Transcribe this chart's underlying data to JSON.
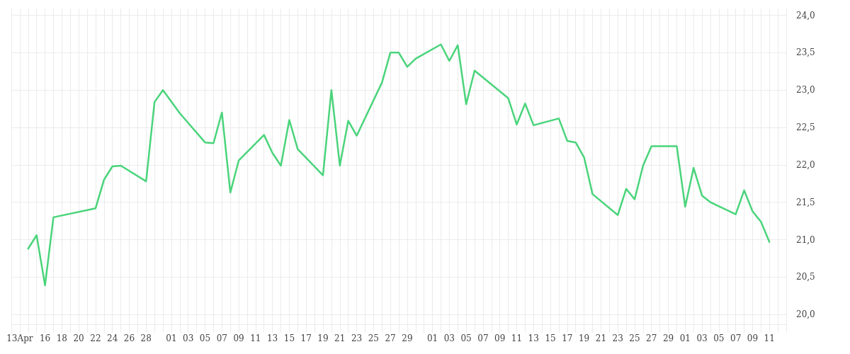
{
  "chart_data": {
    "type": "line",
    "x": [
      "--04-14",
      "--04-15",
      "--04-16",
      "--04-17",
      "--04-22",
      "--04-23",
      "--04-24",
      "--04-25",
      "--04-28",
      "--04-29",
      "--04-30",
      "--05-02",
      "--05-05",
      "--05-06",
      "--05-07",
      "--05-08",
      "--05-09",
      "--05-12",
      "--05-13",
      "--05-14",
      "--05-15",
      "--05-16",
      "--05-19",
      "--05-20",
      "--05-21",
      "--05-22",
      "--05-23",
      "--05-26",
      "--05-27",
      "--05-28",
      "--05-29",
      "--05-30",
      "--06-02",
      "--06-03",
      "--06-04",
      "--06-05",
      "--06-06",
      "--06-10",
      "--06-11",
      "--06-12",
      "--06-13",
      "--06-16",
      "--06-17",
      "--06-18",
      "--06-19",
      "--06-20",
      "--06-23",
      "--06-24",
      "--06-25",
      "--06-26",
      "--06-27",
      "--06-30",
      "--07-01",
      "--07-02",
      "--07-03",
      "--07-04",
      "--07-07",
      "--07-08",
      "--07-09",
      "--07-10",
      "--07-11"
    ],
    "series": [
      {
        "color": "#4ad47b",
        "values": [
          20.88,
          21.06,
          20.39,
          21.3,
          21.42,
          21.8,
          21.98,
          21.99,
          21.78,
          22.84,
          23.0,
          22.69,
          22.3,
          22.29,
          22.7,
          21.63,
          22.06,
          22.4,
          22.16,
          21.99,
          22.6,
          22.21,
          21.86,
          23.0,
          21.99,
          22.59,
          22.39,
          23.1,
          23.5,
          23.5,
          23.31,
          23.42,
          23.61,
          23.39,
          23.6,
          22.81,
          23.26,
          22.89,
          22.54,
          22.82,
          22.53,
          22.62,
          22.32,
          22.3,
          22.1,
          21.61,
          21.33,
          21.68,
          21.54,
          21.99,
          22.25,
          22.25,
          21.44,
          21.96,
          21.59,
          21.5,
          21.34,
          21.66,
          21.38,
          21.24,
          20.97
        ]
      }
    ],
    "xlim": [
      "--04-12",
      "--07-13"
    ],
    "xticks": [
      {
        "value": "--04-12",
        "label": null
      },
      {
        "value": "--04-13",
        "label": "13Apr"
      },
      {
        "value": "--04-14",
        "label": null
      },
      {
        "value": "--04-15",
        "label": null
      },
      {
        "value": "--04-16",
        "label": "16"
      },
      {
        "value": "--04-17",
        "label": null
      },
      {
        "value": "--04-18",
        "label": "18"
      },
      {
        "value": "--04-19",
        "label": null
      },
      {
        "value": "--04-20",
        "label": "20"
      },
      {
        "value": "--04-21",
        "label": null
      },
      {
        "value": "--04-22",
        "label": "22"
      },
      {
        "value": "--04-23",
        "label": null
      },
      {
        "value": "--04-24",
        "label": "24"
      },
      {
        "value": "--04-25",
        "label": null
      },
      {
        "value": "--04-26",
        "label": "26"
      },
      {
        "value": "--04-27",
        "label": null
      },
      {
        "value": "--04-28",
        "label": "28"
      },
      {
        "value": "--04-29",
        "label": null
      },
      {
        "value": "--04-30",
        "label": null
      },
      {
        "value": "--05-01",
        "label": "01"
      },
      {
        "value": "--05-02",
        "label": null
      },
      {
        "value": "--05-03",
        "label": "03"
      },
      {
        "value": "--05-04",
        "label": null
      },
      {
        "value": "--05-05",
        "label": "05"
      },
      {
        "value": "--05-06",
        "label": null
      },
      {
        "value": "--05-07",
        "label": "07"
      },
      {
        "value": "--05-08",
        "label": null
      },
      {
        "value": "--05-09",
        "label": "09"
      },
      {
        "value": "--05-10",
        "label": null
      },
      {
        "value": "--05-11",
        "label": "11"
      },
      {
        "value": "--05-12",
        "label": null
      },
      {
        "value": "--05-13",
        "label": "13"
      },
      {
        "value": "--05-14",
        "label": null
      },
      {
        "value": "--05-15",
        "label": "15"
      },
      {
        "value": "--05-16",
        "label": null
      },
      {
        "value": "--05-17",
        "label": "17"
      },
      {
        "value": "--05-18",
        "label": null
      },
      {
        "value": "--05-19",
        "label": "19"
      },
      {
        "value": "--05-20",
        "label": null
      },
      {
        "value": "--05-21",
        "label": "21"
      },
      {
        "value": "--05-22",
        "label": null
      },
      {
        "value": "--05-23",
        "label": "23"
      },
      {
        "value": "--05-24",
        "label": null
      },
      {
        "value": "--05-25",
        "label": "25"
      },
      {
        "value": "--05-26",
        "label": null
      },
      {
        "value": "--05-27",
        "label": "27"
      },
      {
        "value": "--05-28",
        "label": null
      },
      {
        "value": "--05-29",
        "label": "29"
      },
      {
        "value": "--05-30",
        "label": null
      },
      {
        "value": "--05-31",
        "label": null
      },
      {
        "value": "--06-01",
        "label": "01"
      },
      {
        "value": "--06-02",
        "label": null
      },
      {
        "value": "--06-03",
        "label": "03"
      },
      {
        "value": "--06-04",
        "label": null
      },
      {
        "value": "--06-05",
        "label": "05"
      },
      {
        "value": "--06-06",
        "label": null
      },
      {
        "value": "--06-07",
        "label": "07"
      },
      {
        "value": "--06-08",
        "label": null
      },
      {
        "value": "--06-09",
        "label": "09"
      },
      {
        "value": "--06-10",
        "label": null
      },
      {
        "value": "--06-11",
        "label": "11"
      },
      {
        "value": "--06-12",
        "label": null
      },
      {
        "value": "--06-13",
        "label": "13"
      },
      {
        "value": "--06-14",
        "label": null
      },
      {
        "value": "--06-15",
        "label": "15"
      },
      {
        "value": "--06-16",
        "label": null
      },
      {
        "value": "--06-17",
        "label": "17"
      },
      {
        "value": "--06-18",
        "label": null
      },
      {
        "value": "--06-19",
        "label": "19"
      },
      {
        "value": "--06-20",
        "label": null
      },
      {
        "value": "--06-21",
        "label": "21"
      },
      {
        "value": "--06-22",
        "label": null
      },
      {
        "value": "--06-23",
        "label": "23"
      },
      {
        "value": "--06-24",
        "label": null
      },
      {
        "value": "--06-25",
        "label": "25"
      },
      {
        "value": "--06-26",
        "label": null
      },
      {
        "value": "--06-27",
        "label": "27"
      },
      {
        "value": "--06-28",
        "label": null
      },
      {
        "value": "--06-29",
        "label": "29"
      },
      {
        "value": "--06-30",
        "label": null
      },
      {
        "value": "--07-01",
        "label": "01"
      },
      {
        "value": "--07-02",
        "label": null
      },
      {
        "value": "--07-03",
        "label": "03"
      },
      {
        "value": "--07-04",
        "label": null
      },
      {
        "value": "--07-05",
        "label": "05"
      },
      {
        "value": "--07-06",
        "label": null
      },
      {
        "value": "--07-07",
        "label": "07"
      },
      {
        "value": "--07-08",
        "label": null
      },
      {
        "value": "--07-09",
        "label": "09"
      },
      {
        "value": "--07-10",
        "label": null
      },
      {
        "value": "--07-11",
        "label": "11"
      },
      {
        "value": "--07-12",
        "label": null
      },
      {
        "value": "--07-13",
        "label": null
      }
    ],
    "ylim": [
      19.87,
      24.09
    ],
    "yticks": [
      {
        "value": 20,
        "label": "20,0"
      },
      {
        "value": 20.5,
        "label": "20,5"
      },
      {
        "value": 21,
        "label": "21,0"
      },
      {
        "value": 21.5,
        "label": "21,5"
      },
      {
        "value": 22,
        "label": "22,0"
      },
      {
        "value": 22.5,
        "label": "22,5"
      },
      {
        "value": 23,
        "label": "23,0"
      },
      {
        "value": 23.5,
        "label": "23,5"
      },
      {
        "value": 24,
        "label": "24,0"
      }
    ],
    "grid": true,
    "marker": "none",
    "line_style": "solid"
  }
}
